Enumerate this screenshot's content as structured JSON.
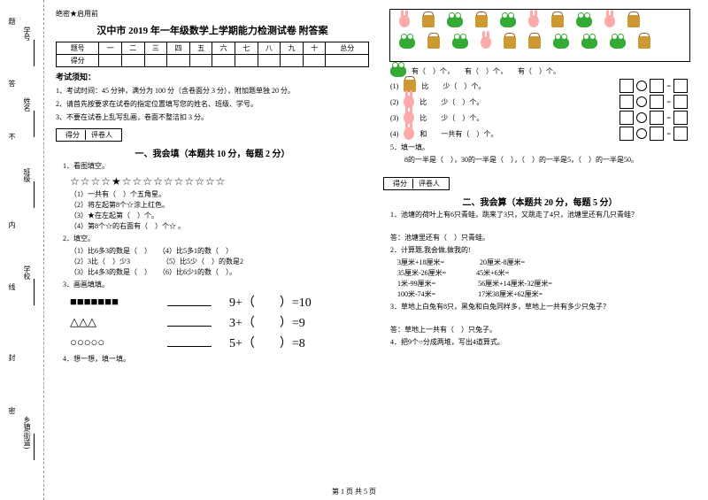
{
  "binding": {
    "labels": [
      "学号",
      "姓名",
      "班级",
      "学校",
      "乡镇(街道)"
    ],
    "markers": [
      "题",
      "答",
      "不",
      "内",
      "线",
      "封",
      "密"
    ]
  },
  "header": {
    "confidential": "绝密★启用前"
  },
  "title": "汉中市 2019 年一年级数学上学期能力检测试卷 附答案",
  "scoreTable": {
    "cols": [
      "题号",
      "一",
      "二",
      "三",
      "四",
      "五",
      "六",
      "七",
      "八",
      "九",
      "十",
      "总分"
    ],
    "row2": "得分"
  },
  "notice": {
    "heading": "考试须知：",
    "items": [
      "1、考试时间：45 分钟，满分为 100 分（含卷面分 3 分），附加题单独 20 分。",
      "2、请首先按要求在试卷的指定位置填写您的姓名、班级、学号。",
      "3、不要在试卷上乱写乱画，卷面不整洁扣 3 分。"
    ]
  },
  "scorebox": {
    "a": "得分",
    "b": "评卷人"
  },
  "s1": {
    "title": "一、我会填（本题共 10 分，每题 2 分）",
    "q1": "1．看图填空。",
    "stars": "☆☆☆☆★☆☆☆☆☆☆☆☆☆☆",
    "q1subs": [
      "（1）一共有（　）个五角星。",
      "（2）将左起第8个☆涂上红色。",
      "（3）★在左起第（　）个。",
      "（4）第8个☆的右面有（　）个☆ 。"
    ],
    "q2": "2．填空。",
    "q2subs": [
      "（1）比6多3的数是（　）　　（4）比5多1的数（　）",
      "（2）3比（　）少3　　　　　（5）比5少（　）的数是2",
      "（3）比4多3的数是（　）　　（6）比6少1的数（　）。"
    ],
    "q3": "3．画画填填。",
    "rows": [
      {
        "shapes": "■■■■■■■",
        "eq": "9+（　　）=10"
      },
      {
        "shapes": "△△△",
        "eq": "3+（　　）=9"
      },
      {
        "shapes": "○○○○○",
        "eq": "5+（　　）=8"
      }
    ],
    "q4": "4．想一想，填一填。"
  },
  "right": {
    "countLine": "有（　）个，　　有（　）个，　　有（　）个。",
    "compRows": [
      {
        "n": "(1)",
        "a": "bag",
        "b": "frog",
        "t": "比　　少（　）个。"
      },
      {
        "n": "(2)",
        "a": "bunny",
        "b": "bag",
        "t": "比　　少（　）个。"
      },
      {
        "n": "(3)",
        "a": "bunny",
        "b": "frog",
        "t": "比　　少（　）个。"
      },
      {
        "n": "(4)",
        "a": "bunny",
        "b": "bag",
        "t": "和　　一共有（　）个。"
      }
    ],
    "q5": "5．填一填。",
    "q5sub": "　8的一半是（　），30的一半是（　），（　）的一半是5，（　）的一半是50。"
  },
  "s2": {
    "title": "二、我会算（本题共 20 分，每题 5 分）",
    "q1": "1．池塘的荷叶上有6只青蛙，跳来了3只，又跳走了4只，池塘里还有几只青蛙？",
    "a1": "答：池塘里还有（　）只青蛙。",
    "q2": "2．计算题,我会做,做我的!",
    "calcs": [
      "3厘米+18厘米=　　　　　20厘米-8厘米=",
      "35厘米-26厘米=　　　　 45米+6米=",
      "1米-99厘米=　　　　　　56厘米+14厘米-32厘米=",
      "100米-74米=　　　　　　17米38厘米+62厘米="
    ],
    "q3": "3．草地上白兔有8只，黑兔和白兔同样多，草地上一共有多少只兔子？",
    "a3": "答：草地上一共有（　）只兔子。",
    "q4": "4．把9个○分成两堆，写出4道算式。"
  },
  "footer": "第 1 页 共 5 页"
}
